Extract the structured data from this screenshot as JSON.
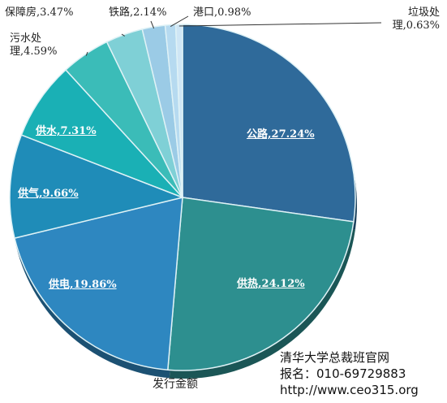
{
  "chart_data": {
    "type": "pie",
    "xlabel": "发行金额",
    "slices": [
      {
        "label": "公路,27.24%",
        "value": 27.24,
        "color": "#2f6a9a"
      },
      {
        "label": "供热,24.12%",
        "value": 24.12,
        "color": "#2d8f8f"
      },
      {
        "label": "供电,19.86%",
        "value": 19.86,
        "color": "#2e87c0"
      },
      {
        "label": "供气,9.66%",
        "value": 9.66,
        "color": "#1f8cb8"
      },
      {
        "label": "供水,7.31%",
        "value": 7.31,
        "color": "#1ab0b5"
      },
      {
        "label": "污水处理,4.59%",
        "value": 4.59,
        "color": "#3bbcb8"
      },
      {
        "label": "保障房,3.47%",
        "value": 3.47,
        "color": "#7fd0d6"
      },
      {
        "label": "铁路,2.14%",
        "value": 2.14,
        "color": "#9bcbe6"
      },
      {
        "label": "港口,0.98%",
        "value": 0.98,
        "color": "#b6daf0"
      },
      {
        "label": "垃圾处理,0.63%",
        "value": 0.63,
        "color": "#cfe6f5"
      }
    ]
  },
  "watermark": {
    "line1": "清华大学总裁班官网",
    "line2": "报名：010-69729883",
    "line3": "http://www.ceo315.org"
  }
}
